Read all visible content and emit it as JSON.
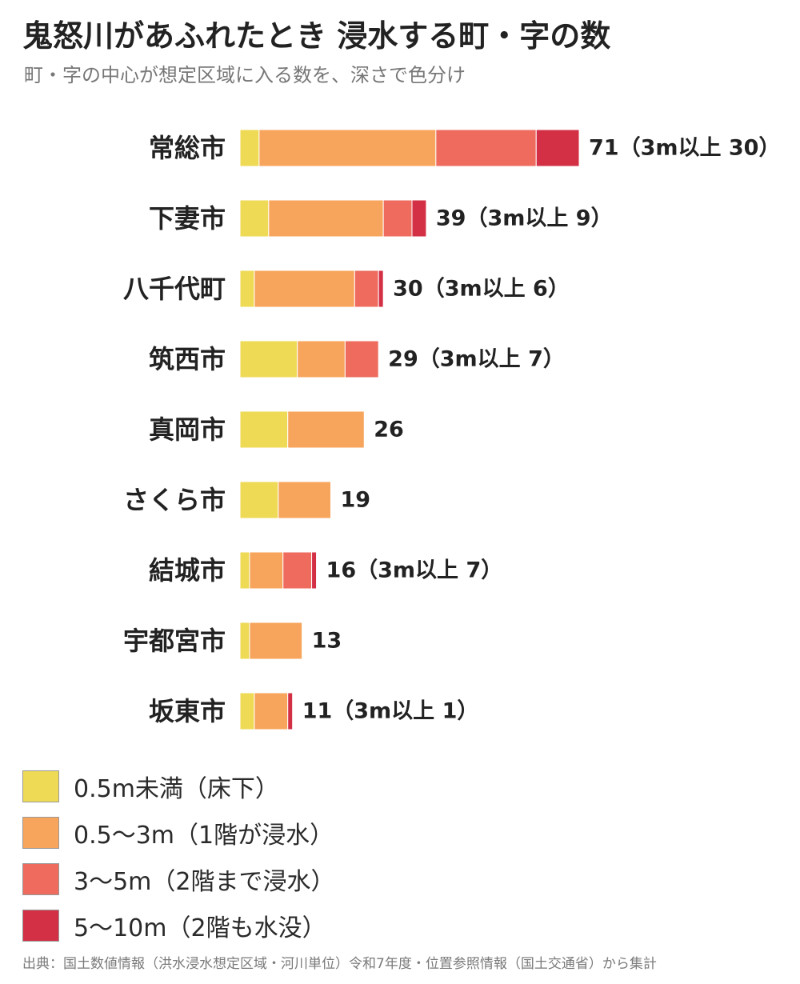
{
  "header": {
    "title": "鬼怒川があふれたとき 浸水する町・字の数",
    "subtitle": "町・字の中心が想定区域に入る数を、深さで色分け"
  },
  "chart_data": {
    "type": "bar",
    "orientation": "horizontal",
    "stacked": true,
    "categories": [
      "常総市",
      "下妻市",
      "八千代町",
      "筑西市",
      "真岡市",
      "さくら市",
      "結城市",
      "宇都宮市",
      "坂東市"
    ],
    "series": [
      {
        "name": "0.5m未満（床下）",
        "color": "#EEDA55",
        "values": [
          4,
          6,
          3,
          12,
          10,
          8,
          2,
          2,
          3
        ]
      },
      {
        "name": "0.5〜3m（1階が浸水）",
        "color": "#F7A55C",
        "values": [
          37,
          24,
          21,
          10,
          16,
          11,
          7,
          11,
          7
        ]
      },
      {
        "name": "3〜5m（2階まで浸水）",
        "color": "#EE6B5E",
        "values": [
          21,
          6,
          5,
          7,
          0,
          0,
          6,
          0,
          0
        ]
      },
      {
        "name": "5〜10m（2階も水没）",
        "color": "#D32F45",
        "values": [
          9,
          3,
          1,
          0,
          0,
          0,
          1,
          0,
          1
        ]
      }
    ],
    "totals": [
      71,
      39,
      30,
      29,
      26,
      19,
      16,
      13,
      11
    ],
    "value_labels": [
      "71（3m以上 30）",
      "39（3m以上 9）",
      "30（3m以上 6）",
      "29（3m以上 7）",
      "26",
      "19",
      "16（3m以上 7）",
      "13",
      "11（3m以上 1）"
    ],
    "xlim": [
      0,
      71
    ],
    "grid": false,
    "legend_position": "bottom-left"
  },
  "footer": {
    "source": "出典：国土数値情報（洪水浸水想定区域・河川単位）令和7年度・位置参照情報（国土交通省）から集計"
  }
}
